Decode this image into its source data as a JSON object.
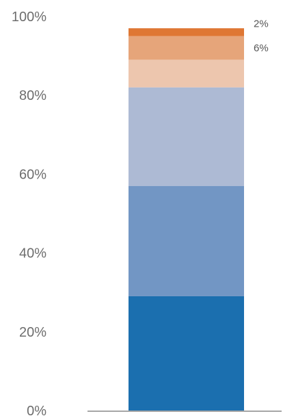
{
  "chart_data": {
    "type": "bar",
    "stacked": true,
    "categories": [
      ""
    ],
    "series": [
      {
        "values": [
          29
        ],
        "color": "#1b6faf"
      },
      {
        "values": [
          28
        ],
        "color": "#7296c4"
      },
      {
        "values": [
          25
        ],
        "color": "#adbad4"
      },
      {
        "values": [
          7
        ],
        "color": "#edc6ae"
      },
      {
        "values": [
          6
        ],
        "color": "#e6a57a",
        "label": "6%"
      },
      {
        "values": [
          2
        ],
        "color": "#df7733",
        "label": "2%"
      }
    ],
    "yticks": [
      "0%",
      "20%",
      "40%",
      "60%",
      "80%",
      "100%"
    ],
    "ylim": [
      0,
      100
    ],
    "grid": false,
    "legend": "none",
    "baseline_color": "#a6a6a6"
  }
}
